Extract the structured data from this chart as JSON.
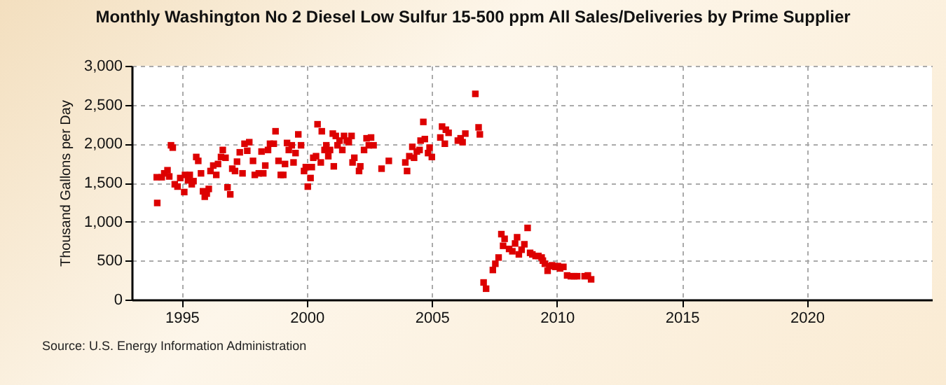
{
  "chart_data": {
    "type": "scatter",
    "title": "Monthly Washington No 2 Diesel Low Sulfur 15-500 ppm All Sales/Deliveries by Prime Supplier",
    "ylabel": "Thousand Gallons per Day",
    "annotations": [
      "Source: U.S. Energy Information Administration"
    ],
    "xlim": [
      1993,
      2025
    ],
    "xticks": [
      1995,
      2000,
      2005,
      2010,
      2015,
      2020
    ],
    "ylim": [
      0,
      3000
    ],
    "yticks": [
      0,
      500,
      {
        "value": 1000,
        "label": "1,000"
      },
      {
        "value": 1500,
        "label": "1,500"
      },
      {
        "value": 2000,
        "label": "2,000"
      },
      {
        "value": 2500,
        "label": "2,500"
      },
      {
        "value": 3000,
        "label": "3,000"
      }
    ],
    "grid": true,
    "marker": "square",
    "series": [
      {
        "color": "#dd0000",
        "x": [
          1994.02,
          1994.0,
          1994.2,
          1994.3,
          1994.43,
          1994.5,
          1994.57,
          1994.64,
          1994.72,
          1994.83,
          1994.94,
          1995.1,
          1995.13,
          1995.25,
          1995.32,
          1995.4,
          1995.47,
          1995.58,
          1995.66,
          1995.77,
          1995.85,
          1995.92,
          1996.0,
          1996.08,
          1996.15,
          1996.26,
          1996.38,
          1996.45,
          1996.57,
          1996.64,
          1996.75,
          1996.83,
          1996.94,
          1997.02,
          1997.13,
          1997.21,
          1997.32,
          1997.43,
          1997.51,
          1997.62,
          1997.7,
          1997.85,
          1997.92,
          1998.08,
          1998.19,
          1998.26,
          1998.34,
          1998.45,
          1998.53,
          1998.68,
          1998.75,
          1998.87,
          1998.96,
          1999.06,
          1999.13,
          1999.21,
          1999.28,
          1999.4,
          1999.47,
          1999.55,
          1999.66,
          1999.77,
          1999.89,
          1999.96,
          2000.04,
          2000.15,
          2000.2,
          2000.26,
          2000.37,
          2000.43,
          2000.56,
          2000.6,
          2000.71,
          2000.78,
          2000.86,
          2000.93,
          2001.04,
          2001.08,
          2001.16,
          2001.23,
          2001.31,
          2001.42,
          2001.49,
          2001.6,
          2001.68,
          2001.79,
          2001.83,
          2001.9,
          2002.09,
          2002.14,
          2002.29,
          2002.39,
          2002.48,
          2002.57,
          2002.67,
          2002.99,
          2003.28,
          2003.94,
          2004.01,
          2004.1,
          2004.22,
          2004.29,
          2004.4,
          2004.51,
          2004.55,
          2004.66,
          2004.72,
          2004.85,
          2004.91,
          2005.0,
          2005.34,
          2005.41,
          2005.52,
          2005.56,
          2005.67,
          2006.04,
          2006.15,
          2006.23,
          2006.34,
          2006.74,
          2006.87,
          2006.92,
          2007.07,
          2007.17,
          2007.44,
          2007.54,
          2007.67,
          2007.78,
          2007.85,
          2007.91,
          2008.09,
          2008.22,
          2008.33,
          2008.41,
          2008.48,
          2008.59,
          2008.7,
          2008.83,
          2008.93,
          2009.02,
          2009.15,
          2009.26,
          2009.39,
          2009.44,
          2009.52,
          2009.63,
          2009.7,
          2009.81,
          2009.94,
          2010.04,
          2010.13,
          2010.26,
          2010.41,
          2010.56,
          2010.69,
          2010.81,
          2011.11,
          2011.24,
          2011.37
        ],
        "values": [
          1240,
          1570,
          1570,
          1620,
          1660,
          1580,
          1980,
          1950,
          1480,
          1450,
          1560,
          1380,
          1600,
          1530,
          1600,
          1480,
          1520,
          1830,
          1780,
          1620,
          1390,
          1320,
          1360,
          1420,
          1650,
          1720,
          1600,
          1740,
          1830,
          1920,
          1820,
          1440,
          1350,
          1680,
          1650,
          1770,
          1890,
          1620,
          2000,
          1910,
          2020,
          1780,
          1600,
          1620,
          1900,
          1620,
          1720,
          1920,
          2000,
          2000,
          2160,
          1780,
          1600,
          1600,
          1740,
          2010,
          1920,
          1980,
          1760,
          1880,
          2120,
          1980,
          1650,
          1700,
          1450,
          1560,
          1700,
          1820,
          1840,
          2250,
          1760,
          2160,
          1920,
          1980,
          1840,
          1920,
          2130,
          1710,
          2100,
          1980,
          2040,
          1920,
          2100,
          2040,
          2020,
          2100,
          1760,
          1820,
          1650,
          1710,
          1920,
          2070,
          1980,
          2080,
          1980,
          1680,
          1780,
          1760,
          1650,
          1840,
          1960,
          1820,
          1900,
          1920,
          2040,
          2280,
          2060,
          1880,
          1950,
          1830,
          2080,
          2220,
          2000,
          2180,
          2140,
          2040,
          2070,
          2020,
          2130,
          2640,
          2210,
          2120,
          220,
          140,
          380,
          460,
          540,
          840,
          690,
          780,
          650,
          620,
          720,
          800,
          580,
          640,
          710,
          920,
          600,
          580,
          560,
          560,
          540,
          500,
          460,
          370,
          430,
          440,
          420,
          430,
          400,
          420,
          310,
          300,
          300,
          300,
          300,
          310,
          260
        ]
      }
    ]
  }
}
